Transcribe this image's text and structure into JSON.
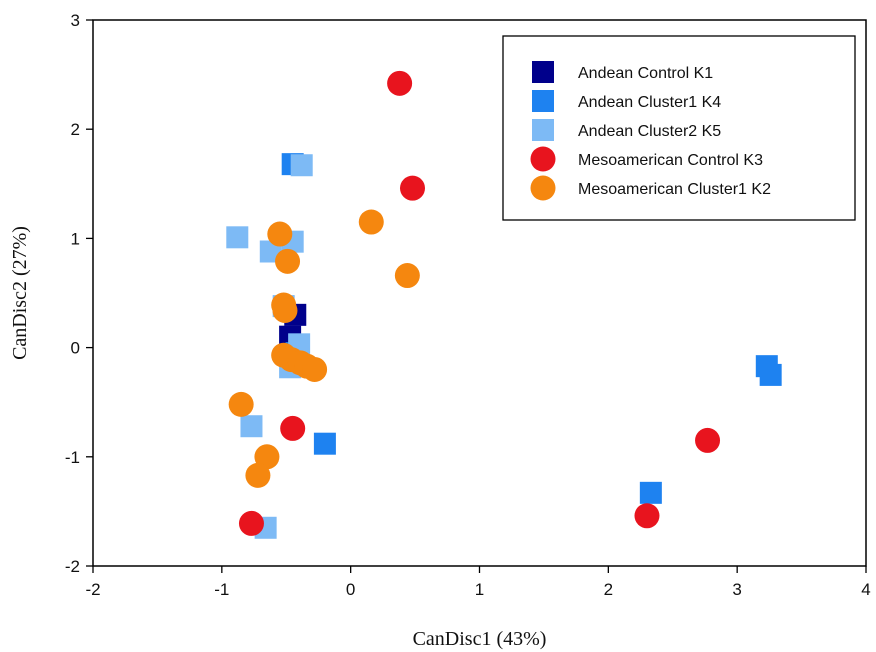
{
  "chart_data": {
    "type": "scatter",
    "title": "",
    "xlabel": "CanDisc1 (43%)",
    "ylabel": "CanDisc2 (27%)",
    "xlim": [
      -2,
      4
    ],
    "ylim": [
      -2,
      3
    ],
    "xticks": [
      "-2",
      "-1",
      "0",
      "1",
      "2",
      "3",
      "4"
    ],
    "yticks": [
      "-2",
      "-1",
      "0",
      "1",
      "2",
      "3"
    ],
    "grid": false,
    "legend_position": "top-right",
    "series": [
      {
        "name": "Andean Control K1",
        "marker": "square",
        "color": "#00008b",
        "points": [
          [
            -0.43,
            0.3
          ],
          [
            -0.47,
            0.1
          ]
        ]
      },
      {
        "name": "Andean Cluster1 K4",
        "marker": "square",
        "color": "#1e82f0",
        "points": [
          [
            -0.2,
            -0.88
          ],
          [
            2.33,
            -1.33
          ],
          [
            3.23,
            -0.17
          ],
          [
            3.26,
            -0.25
          ],
          [
            -0.45,
            1.68
          ],
          [
            -0.42,
            -0.05
          ]
        ]
      },
      {
        "name": "Andean Cluster2 K5",
        "marker": "square",
        "color": "#7dbaf5",
        "points": [
          [
            -0.88,
            1.01
          ],
          [
            -0.38,
            1.67
          ],
          [
            -0.45,
            0.97
          ],
          [
            -0.62,
            0.88
          ],
          [
            -0.52,
            0.38
          ],
          [
            -0.4,
            0.03
          ],
          [
            -0.47,
            -0.18
          ],
          [
            -0.77,
            -0.72
          ],
          [
            -0.66,
            -1.65
          ]
        ]
      },
      {
        "name": "Mesoamerican Control K3",
        "marker": "circle",
        "color": "#e8141e",
        "points": [
          [
            0.38,
            2.42
          ],
          [
            0.48,
            1.46
          ],
          [
            -0.45,
            -0.74
          ],
          [
            -0.77,
            -1.61
          ],
          [
            2.3,
            -1.54
          ],
          [
            2.77,
            -0.85
          ]
        ]
      },
      {
        "name": "Mesoamerican Cluster1 K2",
        "marker": "circle",
        "color": "#f5870f",
        "points": [
          [
            0.16,
            1.15
          ],
          [
            0.44,
            0.66
          ],
          [
            -0.55,
            1.04
          ],
          [
            -0.49,
            0.79
          ],
          [
            -0.52,
            0.39
          ],
          [
            -0.51,
            0.34
          ],
          [
            -0.52,
            -0.07
          ],
          [
            -0.46,
            -0.11
          ],
          [
            -0.39,
            -0.14
          ],
          [
            -0.34,
            -0.17
          ],
          [
            -0.28,
            -0.2
          ],
          [
            -0.85,
            -0.52
          ],
          [
            -0.65,
            -1.0
          ],
          [
            -0.72,
            -1.17
          ]
        ]
      }
    ]
  }
}
